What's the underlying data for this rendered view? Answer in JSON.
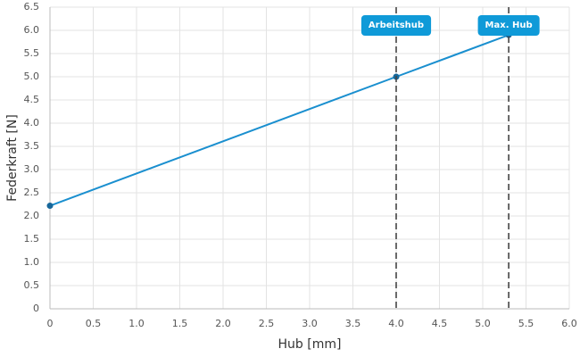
{
  "chart_data": {
    "type": "line",
    "x_label": "Hub [mm]",
    "y_label": "Federkraft [N]",
    "x": [
      0,
      4,
      5.3
    ],
    "values": [
      2.22,
      5.0,
      5.9
    ],
    "color": "#1a8fcf",
    "point_color": "#17679a",
    "xlim": [
      0,
      6
    ],
    "ylim": [
      0,
      6.5
    ],
    "xticks": [
      0,
      0.5,
      {
        "value": 1,
        "label": "1.0"
      },
      1.5,
      {
        "value": 2,
        "label": "2.0"
      },
      2.5,
      {
        "value": 3,
        "label": "3.0"
      },
      3.5,
      {
        "value": 4,
        "label": "4.0"
      },
      4.5,
      {
        "value": 5,
        "label": "5.0"
      },
      5.5,
      {
        "value": 6,
        "label": "6.0"
      }
    ],
    "yticks": [
      0,
      0.5,
      {
        "value": 1,
        "label": "1.0"
      },
      1.5,
      {
        "value": 2,
        "label": "2.0"
      },
      2.5,
      {
        "value": 3,
        "label": "3.0"
      },
      3.5,
      {
        "value": 4,
        "label": "4.0"
      },
      4.5,
      {
        "value": 5,
        "label": "5.0"
      },
      5.5,
      {
        "value": 6,
        "label": "6.0"
      },
      6.5
    ],
    "grid": true,
    "annotations": [
      {
        "x": 4,
        "label": "Arbeitshub"
      },
      {
        "x": 5.3,
        "label": "Max. Hub"
      }
    ],
    "annotation_color": "#0f9ad8"
  }
}
